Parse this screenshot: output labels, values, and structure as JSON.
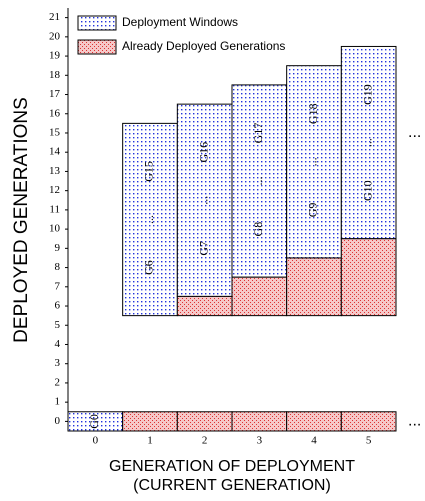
{
  "chart_data": {
    "type": "floating_bar",
    "y_label": "DEPLOYED GENERATIONS",
    "x_label": [
      "GENERATION OF DEPLOYMENT",
      "(CURRENT GENERATION)"
    ],
    "categories": [
      "0",
      "1",
      "2",
      "3",
      "4",
      "5"
    ],
    "ylim": [
      -0.5,
      21.5
    ],
    "yticks": [
      0,
      1,
      2,
      3,
      4,
      5,
      6,
      7,
      8,
      9,
      10,
      11,
      12,
      13,
      14,
      15,
      16,
      17,
      18,
      19,
      20,
      21
    ],
    "annotations": [
      "...",
      "..."
    ],
    "series": [
      {
        "name": "Deployment Windows",
        "color": "#2233dd",
        "bars": [
          {
            "x": 0,
            "low": -0.5,
            "high": 0.5,
            "labels": [
              "G0"
            ]
          },
          {
            "x": 1,
            "low": 5.5,
            "high": 15.5,
            "labels": [
              "G6",
              "...",
              "G15"
            ]
          },
          {
            "x": 2,
            "low": 6.5,
            "high": 16.5,
            "labels": [
              "G7",
              "...",
              "G16"
            ]
          },
          {
            "x": 3,
            "low": 7.5,
            "high": 17.5,
            "labels": [
              "G8",
              "...",
              "G17"
            ]
          },
          {
            "x": 4,
            "low": 8.5,
            "high": 18.5,
            "labels": [
              "G9",
              "...",
              "G18"
            ]
          },
          {
            "x": 5,
            "low": 9.5,
            "high": 19.5,
            "labels": [
              "G10",
              "...",
              "G19"
            ]
          }
        ]
      },
      {
        "name": "Already Deployed Generations",
        "color": "#dd3333",
        "bars": [
          {
            "x": 1,
            "low": -0.5,
            "high": 0.5
          },
          {
            "x": 2,
            "low": -0.5,
            "high": 0.5
          },
          {
            "x": 3,
            "low": -0.5,
            "high": 0.5
          },
          {
            "x": 4,
            "low": -0.5,
            "high": 0.5
          },
          {
            "x": 5,
            "low": -0.5,
            "high": 0.5
          },
          {
            "x": 2,
            "low": 5.5,
            "high": 6.5
          },
          {
            "x": 3,
            "low": 5.5,
            "high": 7.5
          },
          {
            "x": 4,
            "low": 5.5,
            "high": 8.5
          },
          {
            "x": 5,
            "low": 5.5,
            "high": 9.5
          }
        ]
      }
    ]
  }
}
